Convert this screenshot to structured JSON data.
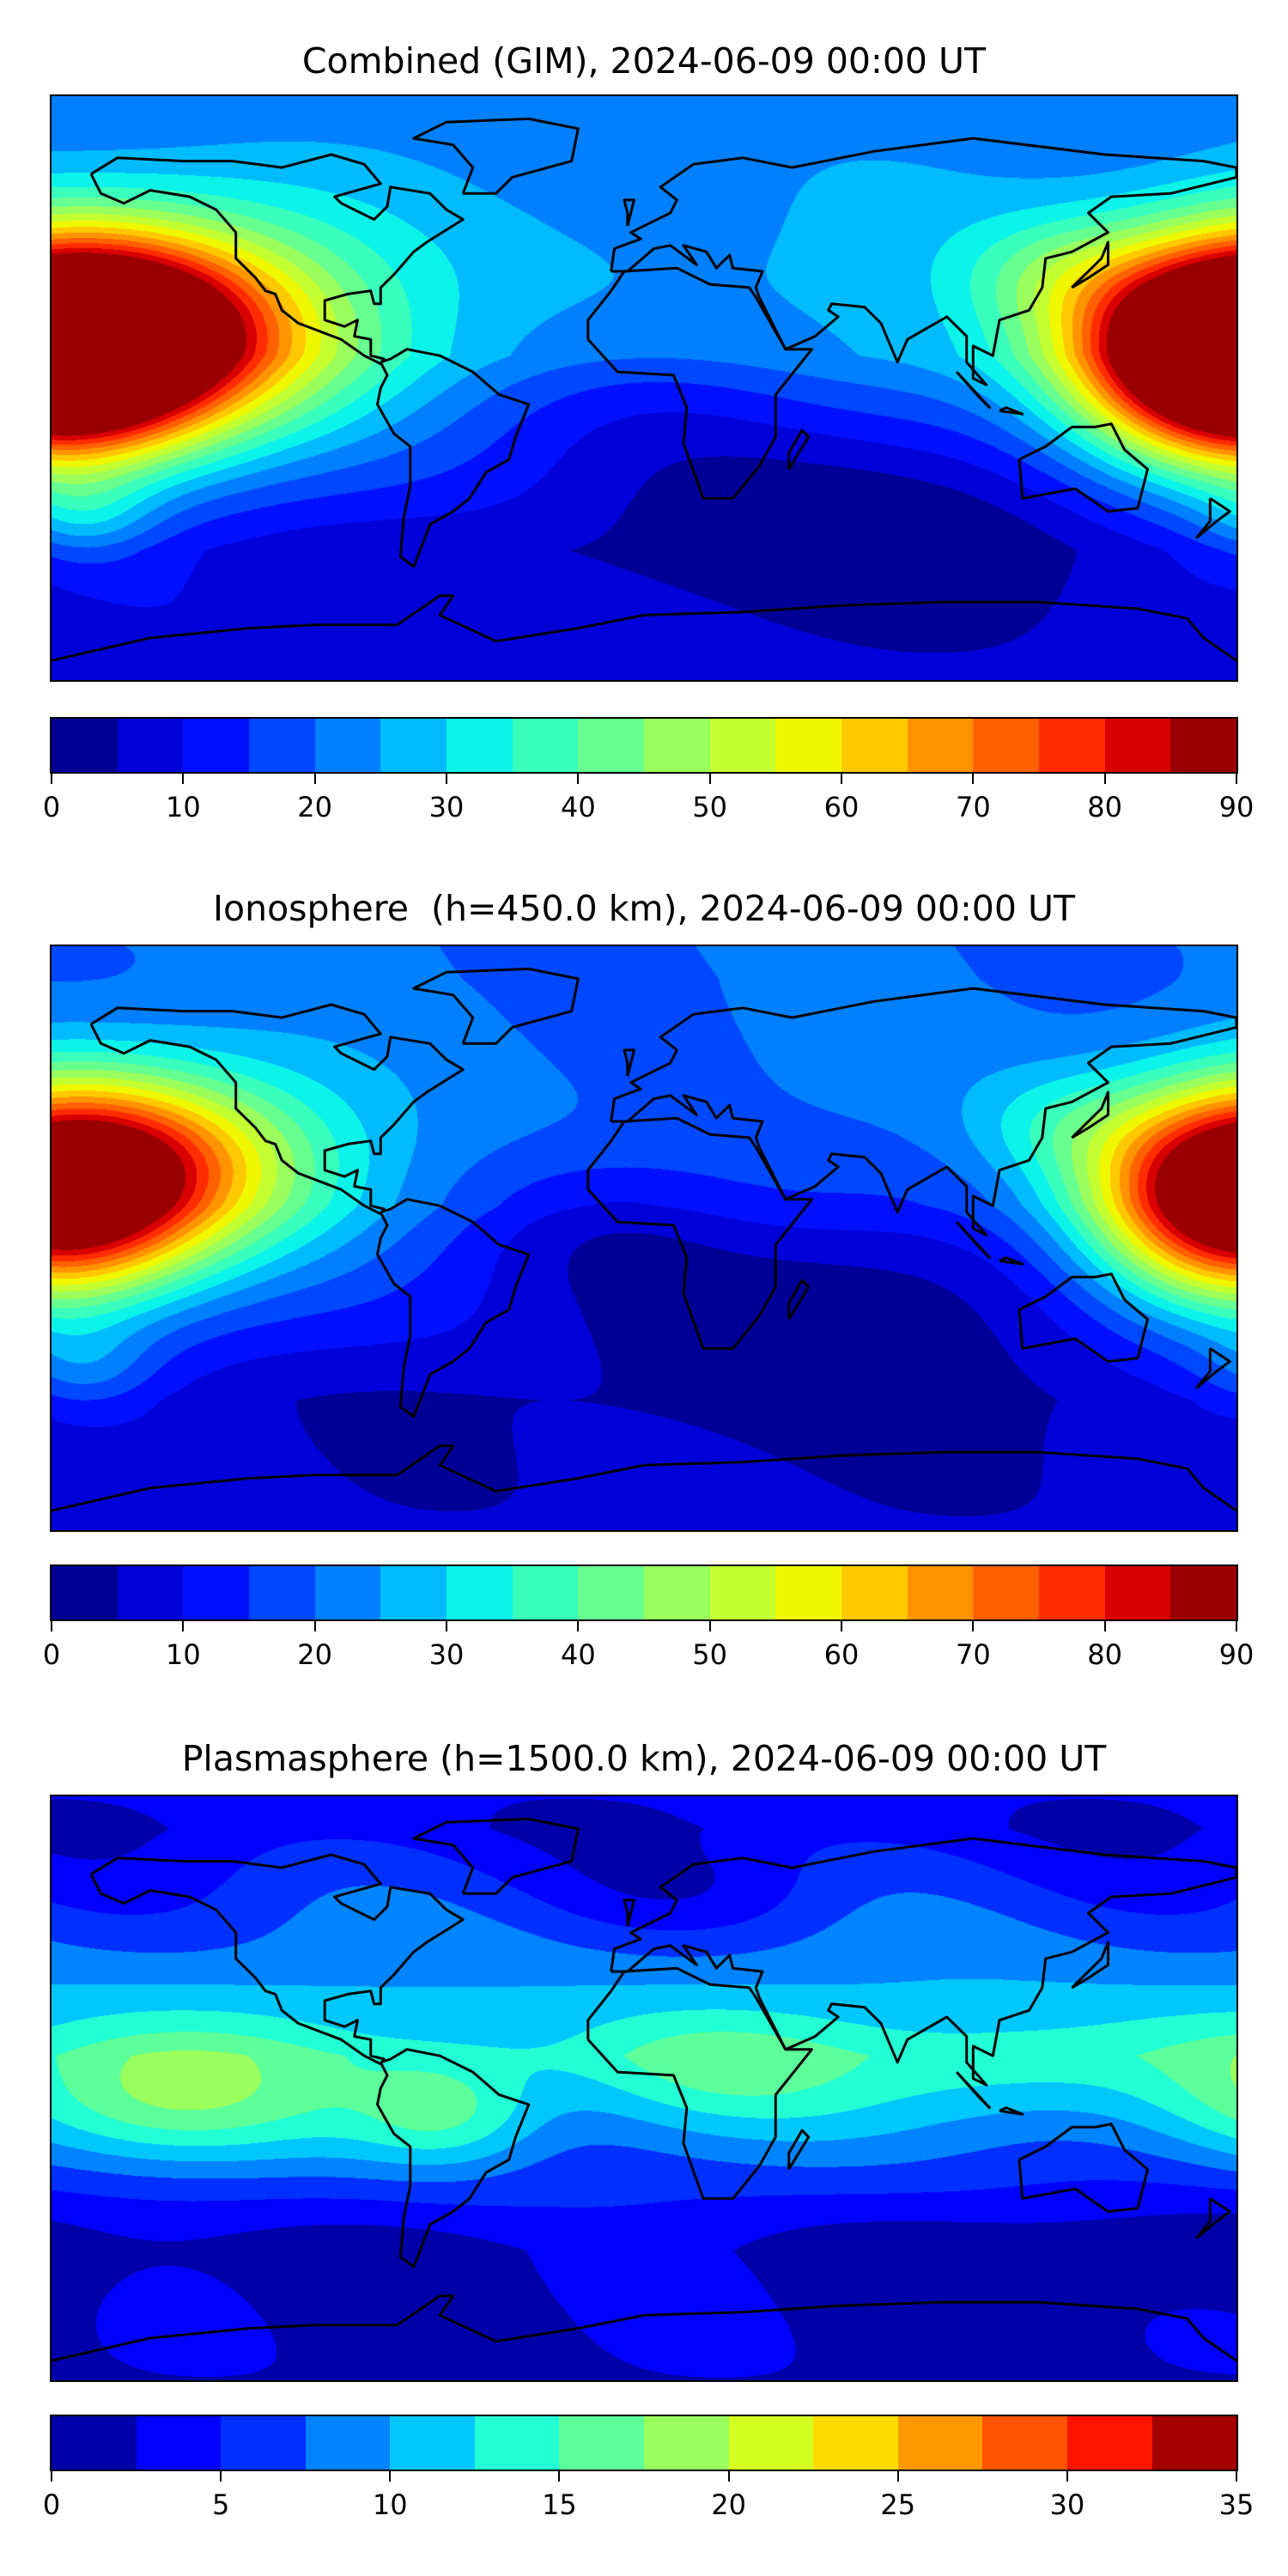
{
  "panels": [
    {
      "title": "Combined (GIM), 2024-06-09 00:00 UT",
      "colorbar": {
        "ticks": [
          "0",
          "10",
          "20",
          "30",
          "40",
          "50",
          "60",
          "70",
          "80",
          "90"
        ],
        "levels_min": 0,
        "levels_max": 90,
        "level_step": 5,
        "colors": [
          "#000096",
          "#0000d8",
          "#0010ff",
          "#0048ff",
          "#0080ff",
          "#00bcff",
          "#0cf4ea",
          "#3affbc",
          "#66ff90",
          "#9aff5c",
          "#c4ff32",
          "#f0f800",
          "#ffc800",
          "#ff9400",
          "#ff6000",
          "#ff2c00",
          "#d80000",
          "#9a0000"
        ]
      }
    },
    {
      "title": "Ionosphere  (h=450.0 km), 2024-06-09 00:00 UT",
      "colorbar": {
        "ticks": [
          "0",
          "10",
          "20",
          "30",
          "40",
          "50",
          "60",
          "70",
          "80",
          "90"
        ],
        "levels_min": 0,
        "levels_max": 90,
        "level_step": 5,
        "colors": [
          "#000096",
          "#0000d8",
          "#0010ff",
          "#0048ff",
          "#0080ff",
          "#00bcff",
          "#0cf4ea",
          "#3affbc",
          "#66ff90",
          "#9aff5c",
          "#c4ff32",
          "#f0f800",
          "#ffc800",
          "#ff9400",
          "#ff6000",
          "#ff2c00",
          "#d80000",
          "#9a0000"
        ]
      }
    },
    {
      "title": "Plasmasphere (h=1500.0 km), 2024-06-09 00:00 UT",
      "colorbar": {
        "ticks": [
          "0",
          "5",
          "10",
          "15",
          "20",
          "25",
          "30",
          "35"
        ],
        "levels_min": 0,
        "levels_max": 35,
        "level_step": 2.5,
        "colors": [
          "#0000a8",
          "#0000ff",
          "#0030ff",
          "#0084ff",
          "#00c8ff",
          "#22ffd4",
          "#5cff9a",
          "#9aff5c",
          "#d4ff22",
          "#ffdc00",
          "#ff9800",
          "#ff5400",
          "#ff1400",
          "#a40000"
        ]
      }
    }
  ],
  "chart_data": [
    {
      "type": "heatmap",
      "title": "Combined (GIM), 2024-06-09 00:00 UT",
      "projection": "equirectangular",
      "lon_range": [
        -180,
        180
      ],
      "lat_range": [
        -90,
        90
      ],
      "value_range": [
        0,
        90
      ],
      "base_profile": {
        "south": 8,
        "equator": 30,
        "north": 22
      },
      "features": [
        {
          "lon": -155,
          "lat": 20,
          "value": 58,
          "lon_spread": 42,
          "lat_spread": 22
        },
        {
          "lon": 180,
          "lat": 8,
          "value": 48,
          "lon_spread": 32,
          "lat_spread": 22
        },
        {
          "lon": -180,
          "lat": 8,
          "value": 40,
          "lon_spread": 30,
          "lat_spread": 22
        },
        {
          "lon": 125,
          "lat": 35,
          "value": 10,
          "lon_spread": 20,
          "lat_spread": 12
        },
        {
          "lon": 60,
          "lat": -35,
          "value": -12,
          "lon_spread": 60,
          "lat_spread": 25
        },
        {
          "lon": 10,
          "lat": 0,
          "value": -10,
          "lon_spread": 40,
          "lat_spread": 20
        },
        {
          "lon": -170,
          "lat": -40,
          "value": 12,
          "lon_spread": 15,
          "lat_spread": 10
        }
      ]
    },
    {
      "type": "heatmap",
      "title": "Ionosphere  (h=450.0 km), 2024-06-09 00:00 UT",
      "projection": "equirectangular",
      "lon_range": [
        -180,
        180
      ],
      "lat_range": [
        -90,
        90
      ],
      "value_range": [
        0,
        90
      ],
      "base_profile": {
        "south": 6,
        "equator": 22,
        "north": 20
      },
      "features": [
        {
          "lon": -155,
          "lat": 24,
          "value": 44,
          "lon_spread": 40,
          "lat_spread": 20
        },
        {
          "lon": 180,
          "lat": 10,
          "value": 36,
          "lon_spread": 30,
          "lat_spread": 22
        },
        {
          "lon": -180,
          "lat": 10,
          "value": 30,
          "lon_spread": 28,
          "lat_spread": 22
        },
        {
          "lon": 125,
          "lat": 35,
          "value": 8,
          "lon_spread": 20,
          "lat_spread": 12
        },
        {
          "lon": 50,
          "lat": -15,
          "value": -14,
          "lon_spread": 55,
          "lat_spread": 25
        },
        {
          "lon": -10,
          "lat": 5,
          "value": -8,
          "lon_spread": 30,
          "lat_spread": 15
        },
        {
          "lon": -170,
          "lat": -40,
          "value": 10,
          "lon_spread": 15,
          "lat_spread": 10
        }
      ]
    },
    {
      "type": "heatmap",
      "title": "Plasmasphere (h=1500.0 km), 2024-06-09 00:00 UT",
      "projection": "equirectangular",
      "lon_range": [
        -180,
        180
      ],
      "lat_range": [
        -90,
        90
      ],
      "value_range": [
        0,
        35
      ],
      "base_profile": {
        "south": 2,
        "equator": 13,
        "north": 3
      },
      "features": [
        {
          "lon": -150,
          "lat": -5,
          "value": 7,
          "lon_spread": 35,
          "lat_spread": 14
        },
        {
          "lon": -60,
          "lat": -8,
          "value": 7,
          "lon_spread": 20,
          "lat_spread": 12
        },
        {
          "lon": 20,
          "lat": 5,
          "value": 3,
          "lon_spread": 30,
          "lat_spread": 12
        },
        {
          "lon": 110,
          "lat": 5,
          "value": 3,
          "lon_spread": 30,
          "lat_spread": 12
        },
        {
          "lon": 160,
          "lat": -50,
          "value": -3,
          "lon_spread": 40,
          "lat_spread": 15
        },
        {
          "lon": 20,
          "lat": 60,
          "value": -2,
          "lon_spread": 30,
          "lat_spread": 10
        }
      ]
    }
  ]
}
